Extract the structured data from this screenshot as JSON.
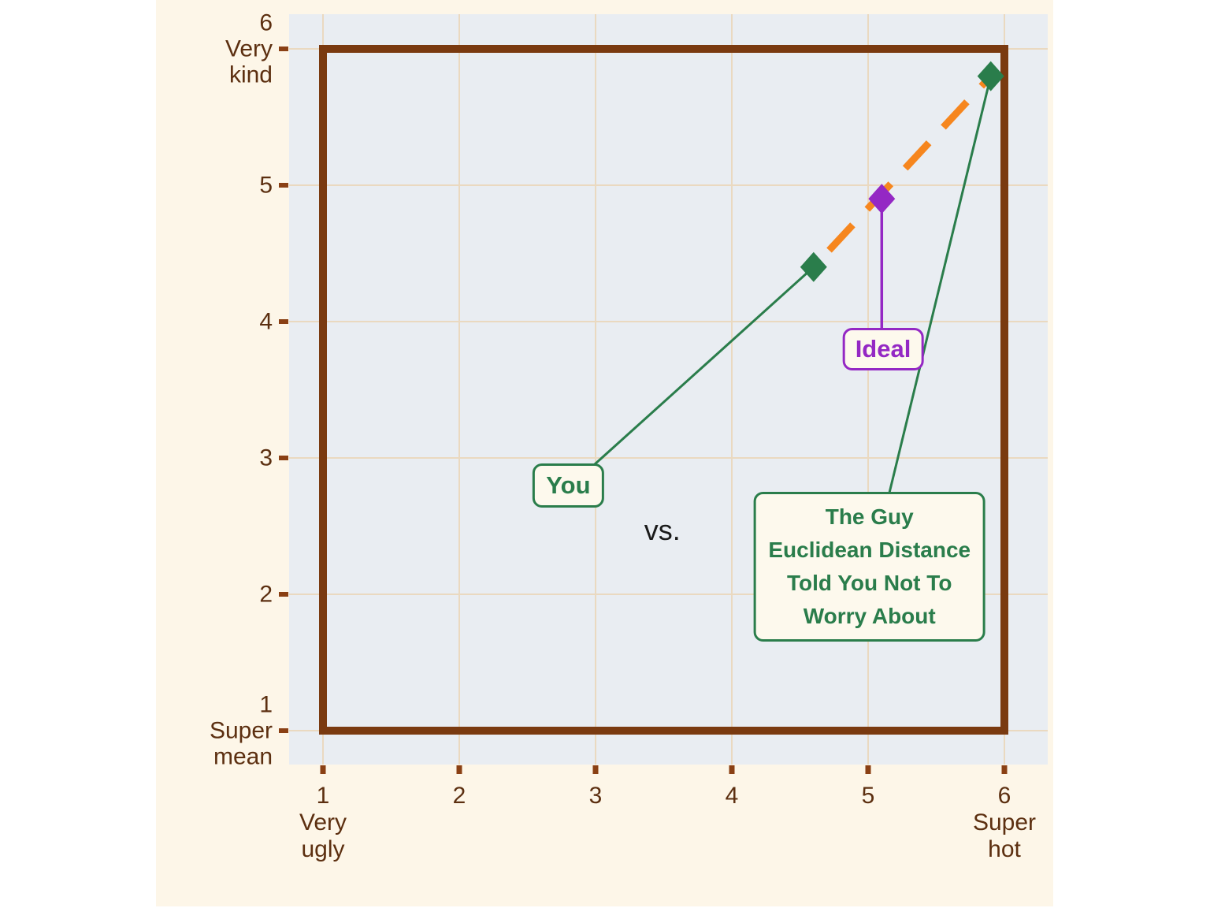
{
  "colors": {
    "background": "#fdf6e8",
    "panel": "#e9edf2",
    "grid": "#ead9c0",
    "frame": "#7a3a10",
    "tick": "#8a4014",
    "axis_text": "#5c2f10",
    "green": "#2a7d4b",
    "purple": "#9428c4",
    "orange": "#f6861e",
    "label_fill": "#fdf9ed",
    "vs_text": "#1a1a1a"
  },
  "chart_data": {
    "type": "scatter",
    "title": "",
    "grid": true,
    "x_axis": {
      "label_low": "Very ugly",
      "label_high": "Super hot",
      "range": [
        0.75,
        6.32
      ],
      "ticks": [
        {
          "value": 1,
          "lines": [
            "1",
            "Very",
            "ugly"
          ]
        },
        {
          "value": 2,
          "lines": [
            "2"
          ]
        },
        {
          "value": 3,
          "lines": [
            "3"
          ]
        },
        {
          "value": 4,
          "lines": [
            "4"
          ]
        },
        {
          "value": 5,
          "lines": [
            "5"
          ]
        },
        {
          "value": 6,
          "lines": [
            "6",
            "Super",
            "hot"
          ]
        }
      ]
    },
    "y_axis": {
      "label_low": "Super mean",
      "label_high": "Very kind",
      "range": [
        0.75,
        6.25
      ],
      "ticks": [
        {
          "value": 6,
          "lines": [
            "6",
            "Very",
            "kind"
          ]
        },
        {
          "value": 5,
          "lines": [
            "5"
          ]
        },
        {
          "value": 4,
          "lines": [
            "4"
          ]
        },
        {
          "value": 3,
          "lines": [
            "3"
          ]
        },
        {
          "value": 2,
          "lines": [
            "2"
          ]
        },
        {
          "value": 1,
          "lines": [
            "1",
            "Super",
            "mean"
          ]
        }
      ]
    },
    "frame_range": {
      "x": [
        1,
        6
      ],
      "y": [
        1,
        6
      ]
    },
    "points": [
      {
        "name": "You",
        "x": 4.6,
        "y": 4.4,
        "marker": "diamond",
        "color_key": "green"
      },
      {
        "name": "Ideal",
        "x": 5.1,
        "y": 4.9,
        "marker": "diamond",
        "color_key": "purple"
      },
      {
        "name": "The Guy",
        "x": 5.9,
        "y": 5.8,
        "marker": "diamond",
        "color_key": "green"
      }
    ],
    "dashed_line": {
      "x1": 4.6,
      "y1": 4.4,
      "x2": 5.9,
      "y2": 5.8,
      "style": "dashed",
      "color_key": "orange"
    },
    "annotations": [
      {
        "text": "vs.",
        "x": 3.49,
        "y": 2.47
      }
    ],
    "labels": [
      {
        "text": "You",
        "x": 2.8,
        "y": 2.8,
        "attach_x": 2.99,
        "attach_y": 2.95,
        "point_index": 0,
        "color_key": "green"
      },
      {
        "text": "Ideal",
        "x": 5.11,
        "y": 3.8,
        "attach_x": 5.1,
        "attach_y": 3.94,
        "point_index": 1,
        "color_key": "purple"
      },
      {
        "lines": [
          "The Guy",
          "Euclidean Distance",
          "Told You Not To",
          "Worry About"
        ],
        "x": 5.01,
        "y": 2.2,
        "attach_x": 5.15,
        "attach_y": 2.72,
        "point_index": 2,
        "color_key": "green"
      }
    ]
  }
}
